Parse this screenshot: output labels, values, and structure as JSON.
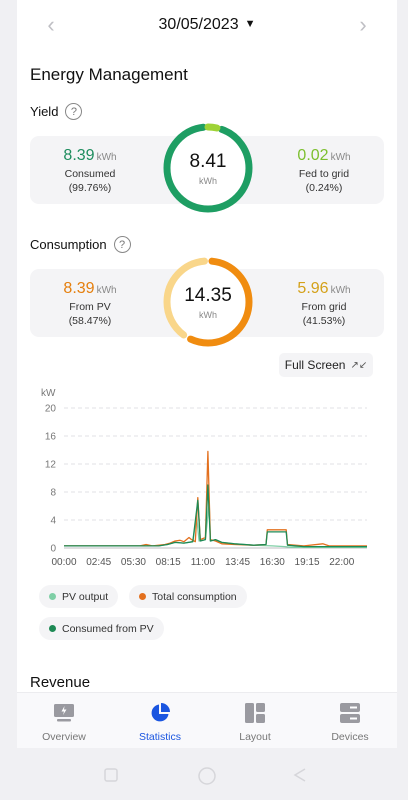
{
  "header": {
    "date": "30/05/2023",
    "prev_icon": "chevron-left-icon",
    "next_icon": "chevron-right-icon",
    "caret_icon": "caret-down-icon"
  },
  "page_title": "Energy Management",
  "yield": {
    "label": "Yield",
    "consumed": {
      "value": "8.39",
      "unit": "kWh",
      "label": "Consumed",
      "pct": "(99.76%)"
    },
    "fed": {
      "value": "0.02",
      "unit": "kWh",
      "label": "Fed to grid",
      "pct": "(0.24%)"
    },
    "total": {
      "value": "8.41",
      "unit": "kWh"
    },
    "ring_fraction_consumed": 0.9976,
    "colors": {
      "consumed": "#1e9e63",
      "fed": "#9ed336"
    }
  },
  "consumption": {
    "label": "Consumption",
    "from_pv": {
      "value": "8.39",
      "unit": "kWh",
      "label": "From PV",
      "pct": "(58.47%)"
    },
    "from_grid": {
      "value": "5.96",
      "unit": "kWh",
      "label": "From grid",
      "pct": "(41.53%)"
    },
    "total": {
      "value": "14.35",
      "unit": "kWh"
    },
    "ring_fraction_pv": 0.5847,
    "colors": {
      "pv": "#f08c10",
      "grid": "#f9d68a"
    }
  },
  "full_screen": {
    "label": "Full Screen",
    "icon": "expand-icon"
  },
  "chart_data": {
    "type": "line",
    "ylabel": "kW",
    "ylim": [
      0,
      20
    ],
    "yticks": [
      "20",
      "16",
      "12",
      "8",
      "4",
      "0"
    ],
    "xticks": [
      "00:00",
      "02:45",
      "05:30",
      "08:15",
      "11:00",
      "13:45",
      "16:30",
      "19:15",
      "22:00"
    ],
    "xlim_hours": [
      0,
      24
    ],
    "grid": true,
    "series": [
      {
        "name": "PV output",
        "color": "#7fcfa6",
        "points": [
          [
            0,
            0.3
          ],
          [
            6,
            0.3
          ],
          [
            7.5,
            0.3
          ],
          [
            8.2,
            0.5
          ],
          [
            8.8,
            0.8
          ],
          [
            9.5,
            0.7
          ],
          [
            10.2,
            0.9
          ],
          [
            10.5,
            4.5
          ],
          [
            10.7,
            1.0
          ],
          [
            11.2,
            1.2
          ],
          [
            11.5,
            6.5
          ],
          [
            11.6,
            1.0
          ],
          [
            12.0,
            1.2
          ],
          [
            12.5,
            0.8
          ],
          [
            13.5,
            0.6
          ],
          [
            15,
            0.4
          ],
          [
            16.5,
            0.3
          ],
          [
            17.5,
            0.2
          ],
          [
            18,
            0.1
          ],
          [
            24,
            0.1
          ]
        ]
      },
      {
        "name": "Total consumption",
        "color": "#e3701e",
        "points": [
          [
            0,
            0.3
          ],
          [
            6,
            0.3
          ],
          [
            6.5,
            0.5
          ],
          [
            7,
            0.3
          ],
          [
            8,
            0.5
          ],
          [
            8.4,
            0.7
          ],
          [
            8.8,
            1.0
          ],
          [
            9.2,
            1.1
          ],
          [
            9.5,
            0.9
          ],
          [
            9.9,
            1.5
          ],
          [
            10.1,
            1.2
          ],
          [
            10.4,
            0.9
          ],
          [
            10.6,
            7.2
          ],
          [
            10.8,
            1.2
          ],
          [
            11.2,
            1.5
          ],
          [
            11.4,
            13.8
          ],
          [
            11.6,
            1.2
          ],
          [
            12.0,
            1.0
          ],
          [
            12.5,
            0.6
          ],
          [
            13.5,
            0.5
          ],
          [
            15,
            0.4
          ],
          [
            16.0,
            0.5
          ],
          [
            16.1,
            2.6
          ],
          [
            17.6,
            2.6
          ],
          [
            17.7,
            0.5
          ],
          [
            19,
            0.3
          ],
          [
            20.5,
            0.6
          ],
          [
            21,
            0.3
          ],
          [
            24,
            0.3
          ]
        ]
      },
      {
        "name": "Consumed from PV",
        "color": "#1e8a55",
        "points": [
          [
            0,
            0.3
          ],
          [
            6,
            0.3
          ],
          [
            7.5,
            0.3
          ],
          [
            8.2,
            0.5
          ],
          [
            8.8,
            0.8
          ],
          [
            9.5,
            0.7
          ],
          [
            10.2,
            0.9
          ],
          [
            10.6,
            6.8
          ],
          [
            10.8,
            1.0
          ],
          [
            11.2,
            1.2
          ],
          [
            11.4,
            9.0
          ],
          [
            11.6,
            1.0
          ],
          [
            12.0,
            1.2
          ],
          [
            12.5,
            0.8
          ],
          [
            13.5,
            0.6
          ],
          [
            15,
            0.4
          ],
          [
            16.0,
            0.5
          ],
          [
            16.1,
            2.3
          ],
          [
            17.6,
            2.3
          ],
          [
            17.7,
            0.4
          ],
          [
            19,
            0.2
          ],
          [
            24,
            0.2
          ]
        ]
      }
    ]
  },
  "legend": [
    {
      "label": "PV output",
      "color": "#7fcfa6"
    },
    {
      "label": "Total consumption",
      "color": "#e3701e"
    },
    {
      "label": "Consumed from PV",
      "color": "#1e8a55"
    }
  ],
  "revenue_title": "Revenue",
  "tabs": [
    {
      "label": "Overview",
      "icon": "overview-icon"
    },
    {
      "label": "Statistics",
      "icon": "pie-chart-icon",
      "active": true
    },
    {
      "label": "Layout",
      "icon": "layout-icon"
    },
    {
      "label": "Devices",
      "icon": "devices-icon"
    }
  ],
  "colors": {
    "accent": "#1a55e0"
  }
}
